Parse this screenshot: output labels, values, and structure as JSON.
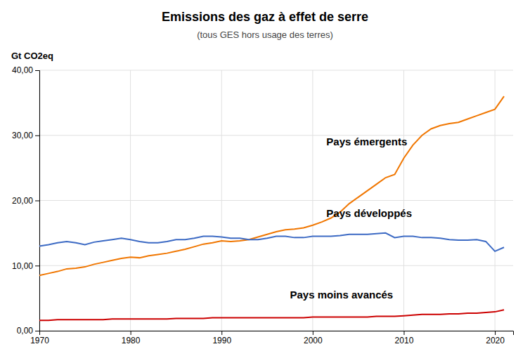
{
  "chart_data": {
    "type": "line",
    "title": "Emissions des gaz à effet de serre",
    "subtitle": "(tous GES hors usage des terres)",
    "ylabel": "Gt CO2eq",
    "grid": true,
    "xlim": [
      1970,
      2022
    ],
    "ylim": [
      0,
      40
    ],
    "xticks": [
      1970,
      1980,
      1990,
      2000,
      2010,
      2020
    ],
    "yticks": [
      {
        "value": 0,
        "label": "0,00"
      },
      {
        "value": 10,
        "label": "10,00"
      },
      {
        "value": 20,
        "label": "20,00"
      },
      {
        "value": 30,
        "label": "30,00"
      },
      {
        "value": 40,
        "label": "40,00"
      }
    ],
    "x": [
      1970,
      1971,
      1972,
      1973,
      1974,
      1975,
      1976,
      1977,
      1978,
      1979,
      1980,
      1981,
      1982,
      1983,
      1984,
      1985,
      1986,
      1987,
      1988,
      1989,
      1990,
      1991,
      1992,
      1993,
      1994,
      1995,
      1996,
      1997,
      1998,
      1999,
      2000,
      2001,
      2002,
      2003,
      2004,
      2005,
      2006,
      2007,
      2008,
      2009,
      2010,
      2011,
      2012,
      2013,
      2014,
      2015,
      2016,
      2017,
      2018,
      2019,
      2020,
      2021
    ],
    "series": [
      {
        "name": "Pays émergents",
        "color": "#f07600",
        "values": [
          8.5,
          8.8,
          9.1,
          9.5,
          9.6,
          9.8,
          10.2,
          10.5,
          10.8,
          11.1,
          11.3,
          11.2,
          11.5,
          11.7,
          11.9,
          12.2,
          12.5,
          12.9,
          13.3,
          13.5,
          13.8,
          13.7,
          13.8,
          14.0,
          14.4,
          14.8,
          15.2,
          15.5,
          15.6,
          15.8,
          16.2,
          16.7,
          17.3,
          18.2,
          19.5,
          20.5,
          21.5,
          22.5,
          23.5,
          24.0,
          26.5,
          28.5,
          30.0,
          31.0,
          31.5,
          31.8,
          32.0,
          32.5,
          33.0,
          33.5,
          34.0,
          36.0
        ]
      },
      {
        "name": "Pays développés",
        "color": "#3c6ac4",
        "values": [
          13.0,
          13.2,
          13.5,
          13.7,
          13.5,
          13.2,
          13.6,
          13.8,
          14.0,
          14.2,
          14.0,
          13.7,
          13.5,
          13.5,
          13.7,
          14.0,
          14.0,
          14.2,
          14.5,
          14.5,
          14.4,
          14.2,
          14.2,
          14.0,
          14.0,
          14.2,
          14.5,
          14.5,
          14.3,
          14.3,
          14.5,
          14.5,
          14.5,
          14.6,
          14.8,
          14.8,
          14.8,
          14.9,
          15.0,
          14.3,
          14.5,
          14.5,
          14.3,
          14.3,
          14.2,
          14.0,
          13.9,
          13.9,
          14.0,
          13.7,
          12.2,
          12.8
        ]
      },
      {
        "name": "Pays moins avancés",
        "color": "#cc0000",
        "values": [
          1.6,
          1.6,
          1.7,
          1.7,
          1.7,
          1.7,
          1.7,
          1.7,
          1.8,
          1.8,
          1.8,
          1.8,
          1.8,
          1.8,
          1.8,
          1.9,
          1.9,
          1.9,
          1.9,
          2.0,
          2.0,
          2.0,
          2.0,
          2.0,
          2.0,
          2.0,
          2.0,
          2.0,
          2.0,
          2.0,
          2.1,
          2.1,
          2.1,
          2.1,
          2.1,
          2.1,
          2.1,
          2.2,
          2.2,
          2.2,
          2.3,
          2.4,
          2.5,
          2.5,
          2.5,
          2.6,
          2.6,
          2.7,
          2.7,
          2.8,
          2.9,
          3.2
        ]
      }
    ],
    "annotations": [
      {
        "text": "Pays émergents",
        "x": 2001.5,
        "y": 28.5
      },
      {
        "text": "Pays développés",
        "x": 2001.5,
        "y": 17.5
      },
      {
        "text": "Pays moins avancés",
        "x": 1997.5,
        "y": 5.0
      }
    ]
  }
}
